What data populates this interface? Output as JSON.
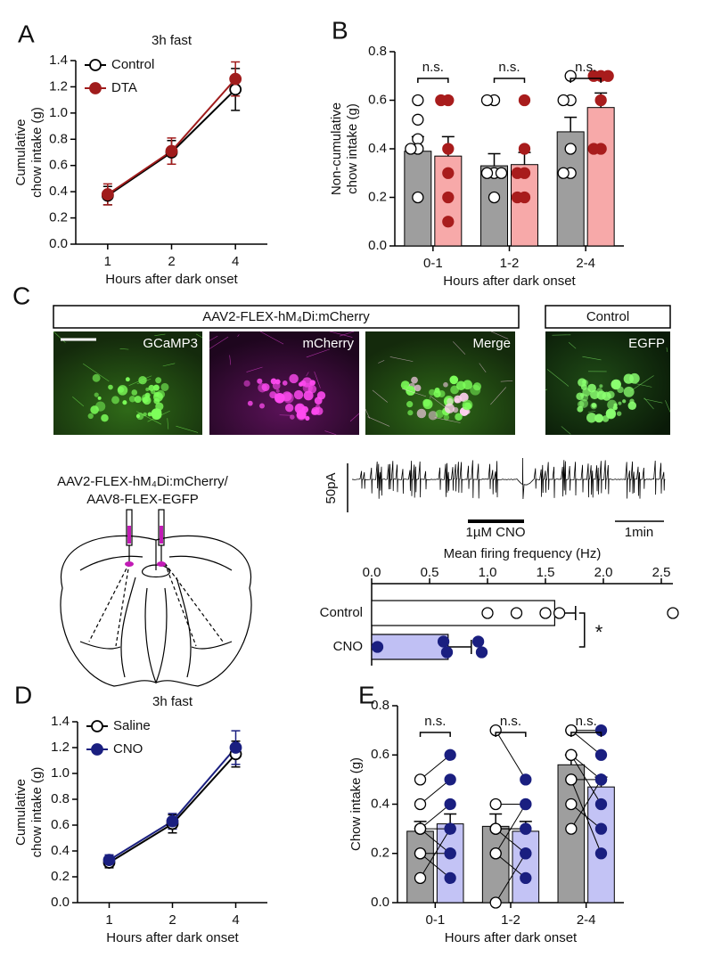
{
  "chart_data": [
    {
      "type": "line",
      "panel": "A",
      "title": "3h fast",
      "categories": [
        "1",
        "2",
        "4"
      ],
      "xlabel": "Hours after dark onset",
      "ylabel": [
        "Cumulative",
        "chow intake (g)"
      ],
      "ylim": [
        0,
        1.4
      ],
      "yticks": [
        {
          "value": 0,
          "label": "0.0"
        },
        0.2,
        0.4,
        0.6,
        0.8,
        {
          "value": 1,
          "label": "1.0"
        },
        1.2,
        1.4
      ],
      "legend": "upper left",
      "series": [
        {
          "name": "Control",
          "color": "#000000",
          "marker_fill": "#ffffff",
          "values": [
            0.37,
            0.7,
            1.18
          ],
          "errors": [
            0.07,
            0.09,
            0.16
          ]
        },
        {
          "name": "DTA",
          "color": "#a01c1c",
          "marker_fill": "#a01c1c",
          "values": [
            0.38,
            0.71,
            1.26
          ],
          "errors": [
            0.08,
            0.1,
            0.13
          ]
        }
      ]
    },
    {
      "type": "bar",
      "panel": "B",
      "categories": [
        "0-1",
        "1-2",
        "2-4"
      ],
      "xlabel": "Hours after dark onset",
      "ylabel": [
        "Non-cumulative",
        "chow intake (g)"
      ],
      "ylim": [
        0,
        0.8
      ],
      "yticks": [
        {
          "value": 0,
          "label": "0.0"
        },
        0.2,
        0.4,
        0.6,
        0.8
      ],
      "annotations": [
        "n.s.",
        "n.s.",
        "n.s."
      ],
      "series": [
        {
          "name": "Control",
          "color": "#9e9e9e",
          "point_color": "#ffffff",
          "values": [
            0.39,
            0.33,
            0.47
          ],
          "errors": [
            0.06,
            0.05,
            0.06
          ],
          "points": [
            [
              0.6,
              0.52,
              0.44,
              0.4,
              0.4,
              0.2
            ],
            [
              0.6,
              0.6,
              0.3,
              0.3,
              0.3,
              0.2
            ],
            [
              0.7,
              0.6,
              0.6,
              0.4,
              0.3,
              0.3
            ]
          ]
        },
        {
          "name": "DTA",
          "color": "#f7a9a9",
          "point_color": "#a81c1c",
          "values": [
            0.37,
            0.335,
            0.57
          ],
          "errors": [
            0.08,
            0.05,
            0.06
          ],
          "points": [
            [
              0.6,
              0.6,
              0.4,
              0.3,
              0.2,
              0.1
            ],
            [
              0.4,
              0.3,
              0.3,
              0.2,
              0.2,
              0.6
            ],
            [
              0.7,
              0.7,
              0.7,
              0.6,
              0.4,
              0.4
            ]
          ]
        }
      ]
    },
    {
      "type": "hbar",
      "xlabel": "Mean firing frequency (Hz)",
      "categories": [
        "Control",
        "CNO"
      ],
      "xlim": [
        0,
        2.6
      ],
      "xticks": [
        {
          "value": 0,
          "label": "0.0"
        },
        0.5,
        {
          "value": 1,
          "label": "1.0"
        },
        1.5,
        {
          "value": 2,
          "label": "2.0"
        },
        2.5
      ],
      "values": [
        1.58,
        0.66
      ],
      "errors": [
        0.18,
        0.2
      ],
      "colors": [
        "#ffffff",
        "#c0c0f4"
      ],
      "point_colors": [
        "#ffffff",
        "#1a1f80"
      ],
      "points": [
        [
          1.0,
          1.25,
          1.5,
          1.62,
          2.6
        ],
        [
          0.05,
          0.62,
          0.65,
          0.92,
          0.95
        ]
      ],
      "annotation": "*"
    },
    {
      "type": "line",
      "panel": "D",
      "title": "3h fast",
      "categories": [
        "1",
        "2",
        "4"
      ],
      "xlabel": "Hours after dark onset",
      "ylabel": [
        "Cumulative",
        "chow intake (g)"
      ],
      "ylim": [
        0,
        1.4
      ],
      "yticks": [
        {
          "value": 0,
          "label": "0.0"
        },
        0.2,
        0.4,
        0.6,
        0.8,
        {
          "value": 1,
          "label": "1.0"
        },
        1.2,
        1.4
      ],
      "legend": "upper left",
      "series": [
        {
          "name": "Saline",
          "color": "#000000",
          "marker_fill": "#ffffff",
          "values": [
            0.31,
            0.61,
            1.15
          ],
          "errors": [
            0.04,
            0.07,
            0.1
          ]
        },
        {
          "name": "CNO",
          "color": "#1a1f80",
          "marker_fill": "#1a1f80",
          "values": [
            0.33,
            0.63,
            1.2
          ],
          "errors": [
            0.04,
            0.06,
            0.13
          ]
        }
      ]
    },
    {
      "type": "bar",
      "panel": "E",
      "paired": true,
      "categories": [
        "0-1",
        "1-2",
        "2-4"
      ],
      "xlabel": "Hours after dark onset",
      "ylabel": [
        "Chow intake (g)"
      ],
      "ylim": [
        0,
        0.8
      ],
      "yticks": [
        {
          "value": 0,
          "label": "0.0"
        },
        0.2,
        0.4,
        0.6,
        0.8
      ],
      "annotations": [
        "n.s.",
        "n.s.",
        "n.s."
      ],
      "series": [
        {
          "name": "Saline",
          "color": "#9e9e9e",
          "point_color": "#ffffff",
          "values": [
            0.29,
            0.31,
            0.56
          ],
          "errors": [
            0.04,
            0.05,
            0.04
          ],
          "points": [
            [
              0.5,
              0.4,
              0.3,
              0.3,
              0.3,
              0.2,
              0.2,
              0.1
            ],
            [
              0.7,
              0.4,
              0.3,
              0.3,
              0.3,
              0.2,
              0.2,
              0.0
            ],
            [
              0.7,
              0.7,
              0.6,
              0.6,
              0.5,
              0.5,
              0.4,
              0.3
            ]
          ]
        },
        {
          "name": "CNO",
          "color": "#c3c3f5",
          "point_color": "#1a1f80",
          "values": [
            0.32,
            0.29,
            0.47
          ],
          "errors": [
            0.04,
            0.04,
            0.04
          ],
          "points": [
            [
              0.6,
              0.5,
              0.4,
              0.3,
              0.2,
              0.2,
              0.1,
              0.3
            ],
            [
              0.5,
              0.4,
              0.2,
              0.3,
              0.3,
              0.1,
              0.4,
              0.2
            ],
            [
              0.7,
              0.6,
              0.4,
              0.5,
              0.5,
              0.2,
              0.3,
              0.5
            ]
          ]
        }
      ]
    }
  ],
  "figure_c": {
    "panel": "C",
    "construct_header": "AAV2-FLEX-hM₄Di:mCherry",
    "control_header": "Control",
    "image_labels": [
      "GCaMP3",
      "mCherry",
      "Merge",
      "EGFP"
    ],
    "injection": [
      "AAV2-FLEX-hM₄Di:mCherry/",
      "AAV8-FLEX-EGFP"
    ],
    "trace_labels": {
      "amplitude": "50pA",
      "drug": "1µM CNO",
      "time": "1min"
    }
  }
}
